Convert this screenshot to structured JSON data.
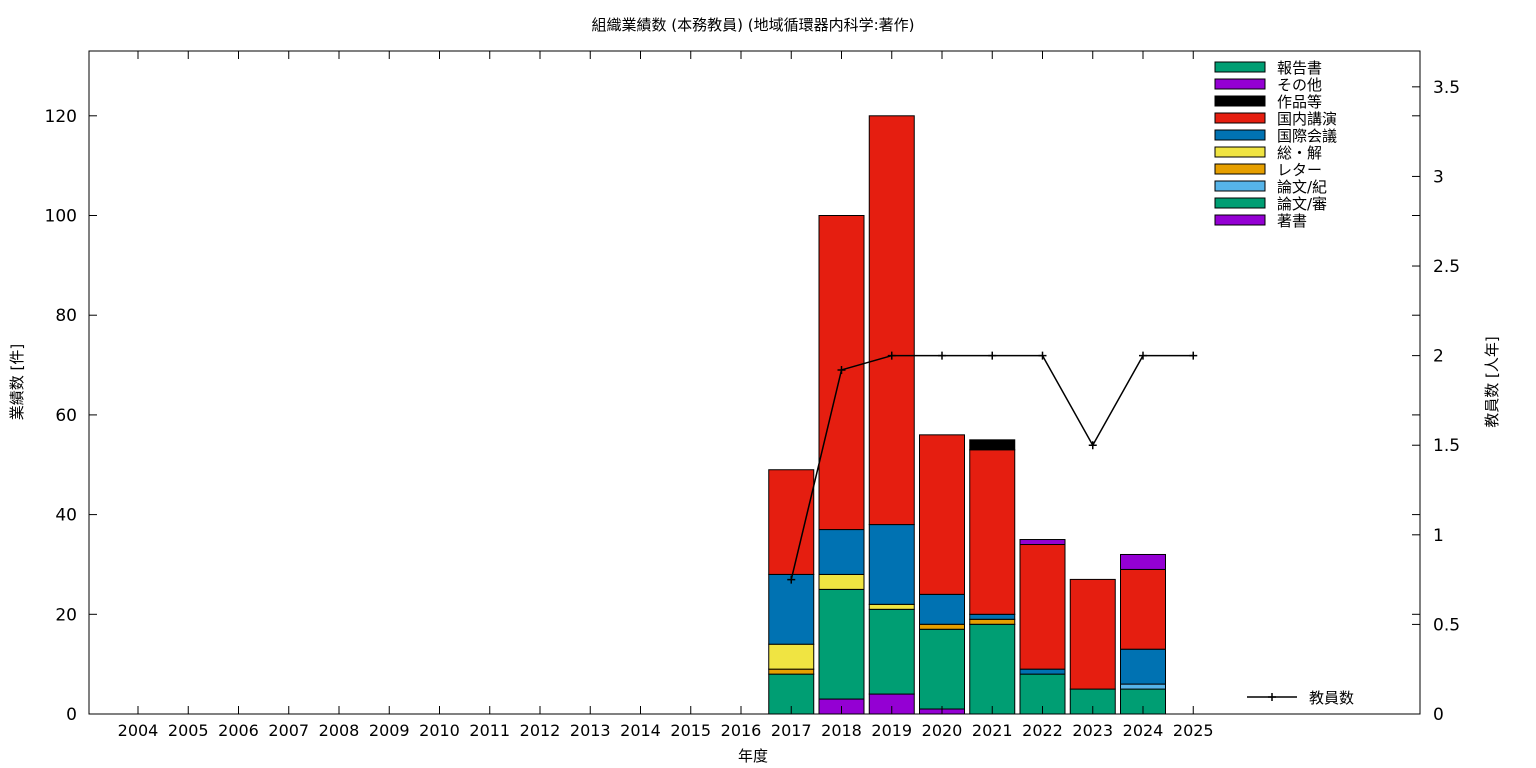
{
  "chart_data": {
    "type": "bar",
    "stacked": true,
    "title": "組織業績数 (本務教員) (地域循環器内科学:著作)",
    "xlabel": "年度",
    "ylabel": "業績数 [件]",
    "y2label": "教員数 [人年]",
    "ylim": [
      0,
      133
    ],
    "y2lim": [
      0,
      3.7
    ],
    "yticks": [
      0,
      20,
      40,
      60,
      80,
      100,
      120
    ],
    "y2ticks": [
      0,
      0.5,
      1,
      1.5,
      2,
      2.5,
      3,
      3.5
    ],
    "grid": false,
    "legend_position": "top-right",
    "categories": [
      "2004",
      "2005",
      "2006",
      "2007",
      "2008",
      "2009",
      "2010",
      "2011",
      "2012",
      "2013",
      "2014",
      "2015",
      "2016",
      "2017",
      "2018",
      "2019",
      "2020",
      "2021",
      "2022",
      "2023",
      "2024",
      "2025"
    ],
    "series": [
      {
        "name": "著書",
        "color": "#9400d3",
        "values": [
          0,
          0,
          0,
          0,
          0,
          0,
          0,
          0,
          0,
          0,
          0,
          0,
          0,
          0,
          3,
          4,
          1,
          0,
          0,
          0,
          0,
          0
        ]
      },
      {
        "name": "論文/審",
        "color": "#009e73",
        "values": [
          0,
          0,
          0,
          0,
          0,
          0,
          0,
          0,
          0,
          0,
          0,
          0,
          0,
          8,
          22,
          17,
          16,
          18,
          8,
          5,
          5,
          0
        ]
      },
      {
        "name": "論文/紀",
        "color": "#56b4e9",
        "values": [
          0,
          0,
          0,
          0,
          0,
          0,
          0,
          0,
          0,
          0,
          0,
          0,
          0,
          0,
          0,
          0,
          0,
          0,
          0,
          0,
          1,
          0
        ]
      },
      {
        "name": "レター",
        "color": "#e69f00",
        "values": [
          0,
          0,
          0,
          0,
          0,
          0,
          0,
          0,
          0,
          0,
          0,
          0,
          0,
          1,
          0,
          0,
          1,
          1,
          0,
          0,
          0,
          0
        ]
      },
      {
        "name": "総・解",
        "color": "#f0e442",
        "values": [
          0,
          0,
          0,
          0,
          0,
          0,
          0,
          0,
          0,
          0,
          0,
          0,
          0,
          5,
          3,
          1,
          0,
          0,
          0,
          0,
          0,
          0
        ]
      },
      {
        "name": "国際会議",
        "color": "#0072b2",
        "values": [
          0,
          0,
          0,
          0,
          0,
          0,
          0,
          0,
          0,
          0,
          0,
          0,
          0,
          14,
          9,
          16,
          6,
          1,
          1,
          0,
          7,
          0
        ]
      },
      {
        "name": "国内講演",
        "color": "#e51e10",
        "values": [
          0,
          0,
          0,
          0,
          0,
          0,
          0,
          0,
          0,
          0,
          0,
          0,
          0,
          21,
          63,
          82,
          32,
          33,
          25,
          22,
          16,
          0
        ]
      },
      {
        "name": "作品等",
        "color": "#000000",
        "values": [
          0,
          0,
          0,
          0,
          0,
          0,
          0,
          0,
          0,
          0,
          0,
          0,
          0,
          0,
          0,
          0,
          0,
          2,
          0,
          0,
          0,
          0
        ]
      },
      {
        "name": "その他",
        "color": "#9400d3",
        "values": [
          0,
          0,
          0,
          0,
          0,
          0,
          0,
          0,
          0,
          0,
          0,
          0,
          0,
          0,
          0,
          0,
          0,
          0,
          1,
          0,
          3,
          0
        ]
      },
      {
        "name": "報告書",
        "color": "#009e73",
        "values": [
          0,
          0,
          0,
          0,
          0,
          0,
          0,
          0,
          0,
          0,
          0,
          0,
          0,
          0,
          0,
          0,
          0,
          0,
          0,
          0,
          0,
          0
        ]
      }
    ],
    "legend_order": [
      "報告書",
      "その他",
      "作品等",
      "国内講演",
      "国際会議",
      "総・解",
      "レター",
      "論文/紀",
      "論文/審",
      "著書"
    ],
    "line": {
      "name": "教員数",
      "axis": "y2",
      "color": "#000000",
      "x": [
        "2017",
        "2018",
        "2019",
        "2020",
        "2021",
        "2022",
        "2023",
        "2024",
        "2025"
      ],
      "values": [
        0.75,
        1.92,
        2,
        2,
        2,
        2,
        1.5,
        2,
        2
      ]
    }
  }
}
